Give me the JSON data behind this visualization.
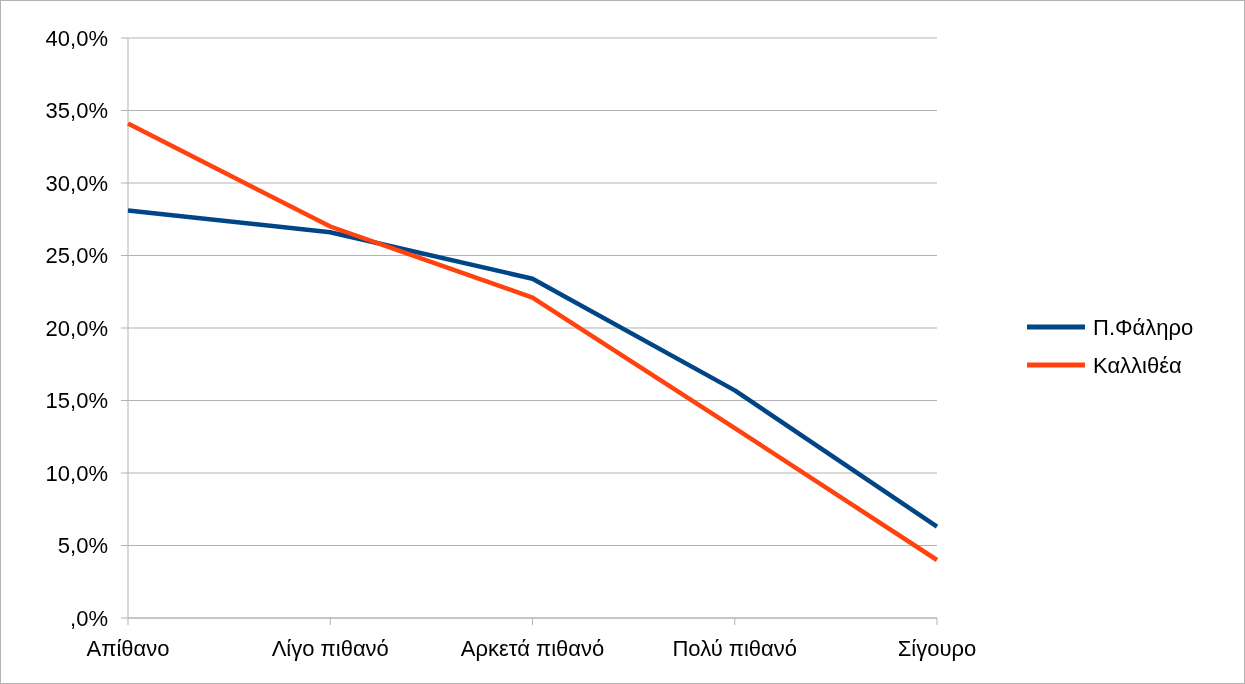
{
  "chart_data": {
    "type": "line",
    "categories": [
      "Απίθανο",
      "Λίγο πιθανό",
      "Αρκετά πιθανό",
      "Πολύ πιθανό",
      "Σίγουρο"
    ],
    "series": [
      {
        "name": "Π.Φάληρο",
        "color": "#004586",
        "values": [
          28.1,
          26.6,
          23.4,
          15.7,
          6.3
        ]
      },
      {
        "name": "Καλλιθέα",
        "color": "#ff420e",
        "values": [
          34.1,
          27.0,
          22.1,
          13.1,
          4.0
        ]
      }
    ],
    "ylim": [
      0,
      40
    ],
    "yticks": [
      {
        "value": 0,
        "label": ",0%"
      },
      {
        "value": 5,
        "label": "5,0%"
      },
      {
        "value": 10,
        "label": "10,0%"
      },
      {
        "value": 15,
        "label": "15,0%"
      },
      {
        "value": 20,
        "label": "20,0%"
      },
      {
        "value": 25,
        "label": "25,0%"
      },
      {
        "value": 30,
        "label": "30,0%"
      },
      {
        "value": 35,
        "label": "35,0%"
      },
      {
        "value": 40,
        "label": "40,0%"
      }
    ],
    "grid": "y",
    "legend": "right",
    "marker": "none",
    "line_style": "solid"
  }
}
